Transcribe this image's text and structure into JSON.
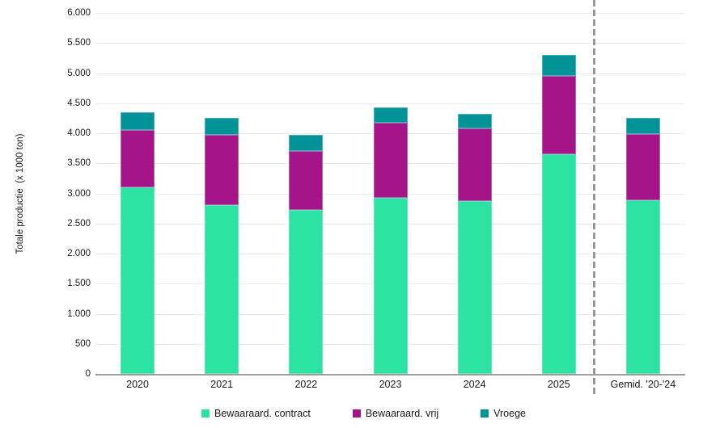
{
  "chart_data": {
    "type": "bar",
    "stacked": true,
    "ylabel": "Totale productie  (x 1000 ton)",
    "ylim": [
      0,
      6000
    ],
    "ytick_step": 500,
    "ytick_labels": [
      "0",
      "500",
      "1.000",
      "1.500",
      "2.000",
      "2.500",
      "3.000",
      "3.500",
      "4.000",
      "4.500",
      "5.000",
      "5.500",
      "6.000"
    ],
    "categories": [
      "2020",
      "2021",
      "2022",
      "2023",
      "2024",
      "2025",
      "Gemid. '20-'24"
    ],
    "series": [
      {
        "name": "Bewaaraard. contract",
        "color": "#2DE3A4",
        "values": [
          3100,
          2800,
          2720,
          2930,
          2870,
          3650,
          2880
        ]
      },
      {
        "name": "Bewaaraard. vrij",
        "color": "#A6148A",
        "values": [
          950,
          1170,
          980,
          1250,
          1210,
          1300,
          1110
        ]
      },
      {
        "name": "Vroege",
        "color": "#029399",
        "values": [
          300,
          280,
          270,
          250,
          240,
          350,
          270
        ]
      }
    ],
    "separator_after_index": 5,
    "grid": true,
    "legend_position": "bottom",
    "colors": {
      "gridline": "#ebebeb",
      "axis_line": "#9d9d9d",
      "separator": "#979797",
      "text": "#1a1a1a"
    }
  }
}
